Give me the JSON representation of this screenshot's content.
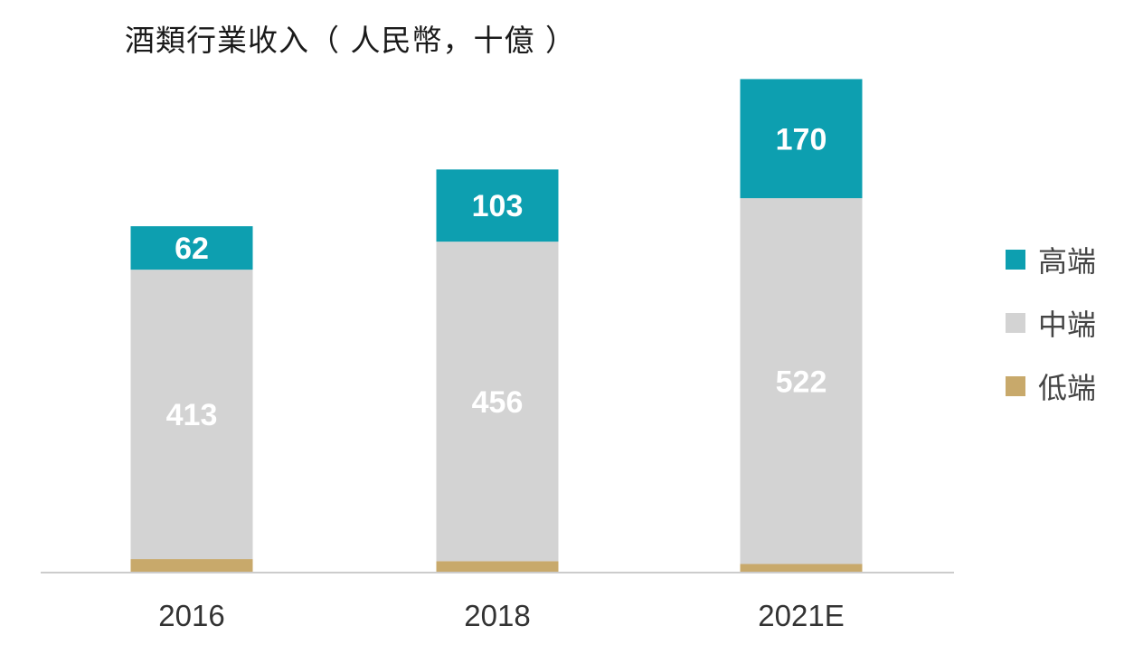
{
  "chart_data": {
    "type": "bar",
    "stacked": true,
    "title": "酒類行業收入（ 人民幣，十億 ）",
    "categories": [
      "2016",
      "2018",
      "2021E"
    ],
    "series": [
      {
        "name": "低端",
        "values": [
          18,
          15,
          11
        ]
      },
      {
        "name": "中端",
        "values": [
          413,
          456,
          522
        ]
      },
      {
        "name": "高端",
        "values": [
          62,
          103,
          170
        ]
      }
    ],
    "data_labels": {
      "中端": [
        "413",
        "456",
        "522"
      ],
      "高端": [
        "62",
        "103",
        "170"
      ]
    },
    "colors": {
      "低端": "#c8a96b",
      "中端": "#d3d3d3",
      "高端": "#0d9fb0"
    },
    "legend_order": [
      "高端",
      "中端",
      "低端"
    ],
    "legend_position": "right",
    "ylim": [
      0,
      710
    ],
    "grid": false,
    "axis_line_color": "#cccccc",
    "label_color": "#ffffff"
  }
}
